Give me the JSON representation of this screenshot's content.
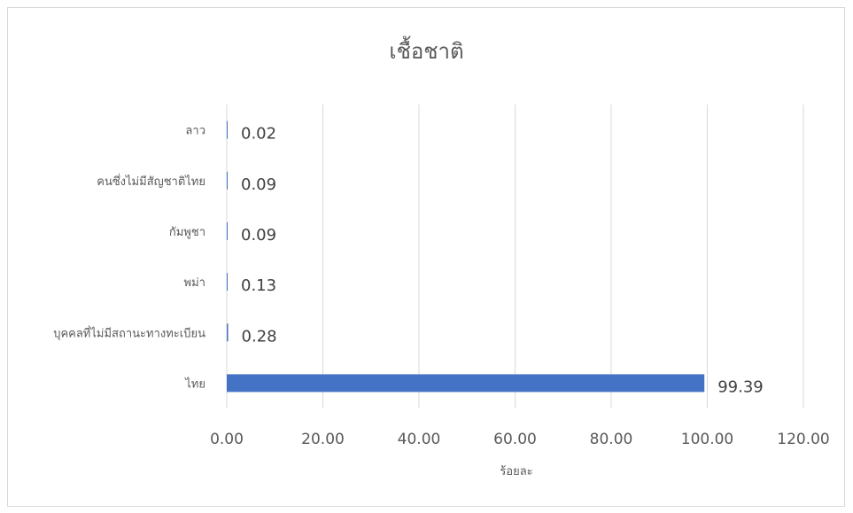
{
  "chart_data": {
    "type": "bar",
    "orientation": "horizontal",
    "title": "เชื้อชาติ",
    "xlabel": "ร้อยละ",
    "ylabel": "",
    "categories": [
      "ไทย",
      "บุคคลที่ไม่มีสถานะทางทะเบียน",
      "พม่า",
      "กัมพูชา",
      "คนซึ่งไม่มีสัญชาติไทย",
      "ลาว"
    ],
    "values": [
      99.39,
      0.28,
      0.13,
      0.09,
      0.09,
      0.02
    ],
    "value_labels": [
      "99.39",
      "0.28",
      "0.13",
      "0.09",
      "0.09",
      "0.02"
    ],
    "xlim": [
      0,
      120
    ],
    "xticks": [
      0,
      20,
      40,
      60,
      80,
      100,
      120
    ],
    "xtick_labels": [
      "0.00",
      "20.00",
      "40.00",
      "60.00",
      "80.00",
      "100.00",
      "120.00"
    ],
    "grid": true,
    "legend": "none",
    "bar_color": "#4472c4"
  }
}
